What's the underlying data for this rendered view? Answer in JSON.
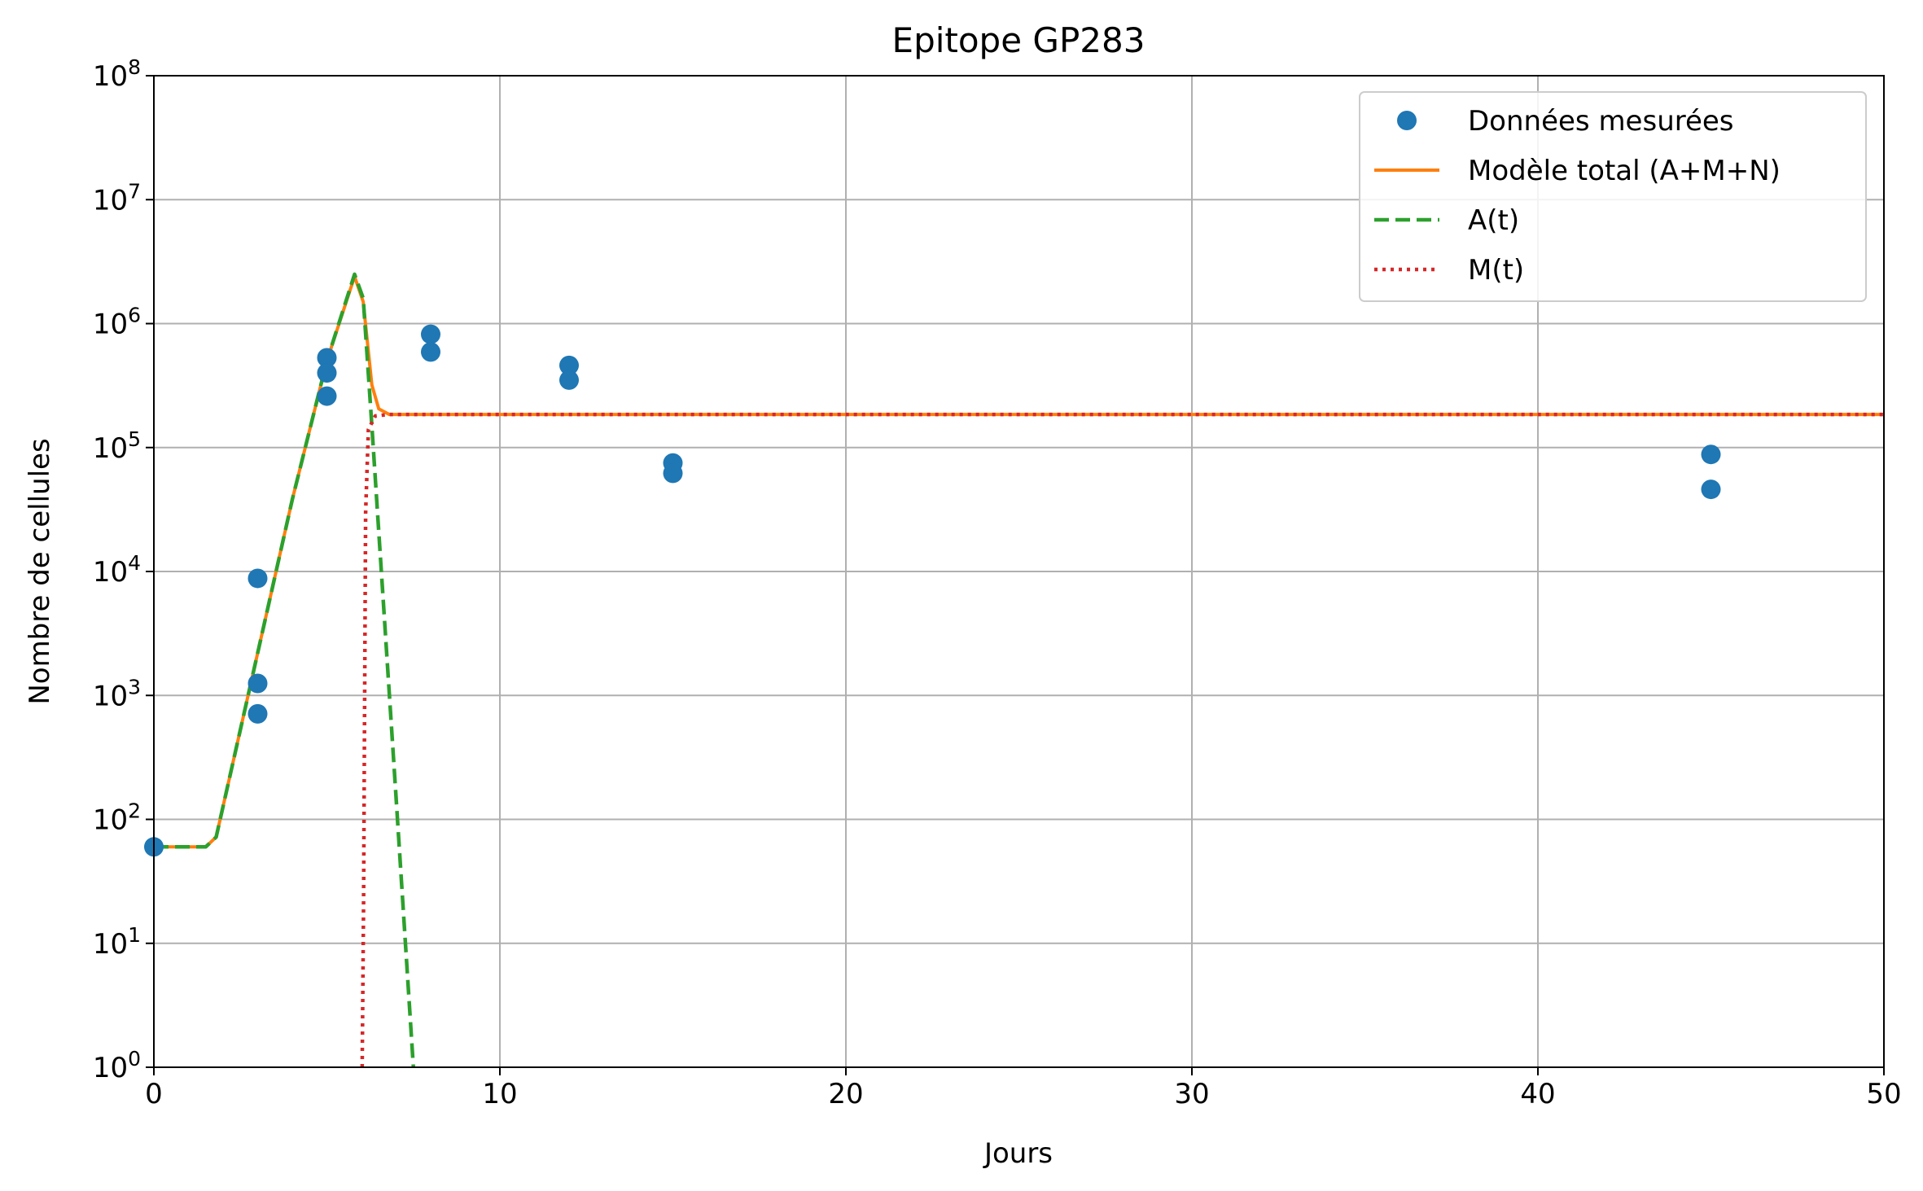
{
  "chart_data": {
    "type": "scatter",
    "title": "Epitope GP283",
    "xlabel": "Jours",
    "ylabel": "Nombre de cellules",
    "xlim": [
      0,
      50
    ],
    "ylim": [
      1,
      100000000
    ],
    "yscale": "log",
    "grid": true,
    "legend_position": "top-right",
    "x_ticks": [
      {
        "value": 0,
        "label": "0"
      },
      {
        "value": 10,
        "label": "10"
      },
      {
        "value": 20,
        "label": "20"
      },
      {
        "value": 30,
        "label": "30"
      },
      {
        "value": 40,
        "label": "40"
      },
      {
        "value": 50,
        "label": "50"
      }
    ],
    "y_ticks": [
      {
        "value": 1,
        "base": "10",
        "exp": "0"
      },
      {
        "value": 10,
        "base": "10",
        "exp": "1"
      },
      {
        "value": 100,
        "base": "10",
        "exp": "2"
      },
      {
        "value": 1000,
        "base": "10",
        "exp": "3"
      },
      {
        "value": 10000,
        "base": "10",
        "exp": "4"
      },
      {
        "value": 100000,
        "base": "10",
        "exp": "5"
      },
      {
        "value": 1000000,
        "base": "10",
        "exp": "6"
      },
      {
        "value": 10000000,
        "base": "10",
        "exp": "7"
      },
      {
        "value": 100000000,
        "base": "10",
        "exp": "8"
      }
    ],
    "series": [
      {
        "name": "Données mesurées",
        "kind": "markers",
        "color": "#1f77b4",
        "points": [
          [
            0,
            60
          ],
          [
            3,
            8800
          ],
          [
            3,
            1250
          ],
          [
            3,
            710
          ],
          [
            5,
            530000
          ],
          [
            5,
            400000
          ],
          [
            5,
            260000
          ],
          [
            8,
            820000
          ],
          [
            8,
            590000
          ],
          [
            12,
            460000
          ],
          [
            12,
            350000
          ],
          [
            15,
            75000
          ],
          [
            15,
            62000
          ],
          [
            45,
            88000
          ],
          [
            45,
            46000
          ]
        ]
      },
      {
        "name": "Modèle total (A+M+N)",
        "kind": "line",
        "style": "solid",
        "color": "#ff7f0e",
        "points": [
          [
            0,
            60
          ],
          [
            1.5,
            60
          ],
          [
            1.8,
            72
          ],
          [
            3,
            2200
          ],
          [
            4,
            38000
          ],
          [
            5,
            500000
          ],
          [
            5.8,
            2400000
          ],
          [
            6.05,
            1500000
          ],
          [
            6.3,
            320000
          ],
          [
            6.5,
            205000
          ],
          [
            6.8,
            185000
          ],
          [
            10,
            185000
          ],
          [
            20,
            185000
          ],
          [
            30,
            185000
          ],
          [
            40,
            185000
          ],
          [
            50,
            185000
          ]
        ]
      },
      {
        "name": "A(t)",
        "kind": "line",
        "style": "dashed",
        "color": "#2ca02c",
        "points": [
          [
            0,
            60
          ],
          [
            1.5,
            60
          ],
          [
            1.8,
            72
          ],
          [
            3,
            2200
          ],
          [
            4,
            38000
          ],
          [
            5,
            500000
          ],
          [
            5.8,
            2500000
          ],
          [
            6.05,
            1600000
          ],
          [
            6.3,
            150000
          ],
          [
            7,
            150
          ],
          [
            7.5,
            1
          ]
        ]
      },
      {
        "name": "M(t)",
        "kind": "line",
        "style": "dotted",
        "color": "#d62728",
        "points": [
          [
            6.02,
            1
          ],
          [
            6.06,
            20
          ],
          [
            6.12,
            30000
          ],
          [
            6.2,
            140000
          ],
          [
            6.4,
            180000
          ],
          [
            6.8,
            185000
          ],
          [
            10,
            185000
          ],
          [
            20,
            185000
          ],
          [
            30,
            185000
          ],
          [
            40,
            185000
          ],
          [
            50,
            185000
          ]
        ]
      }
    ]
  }
}
